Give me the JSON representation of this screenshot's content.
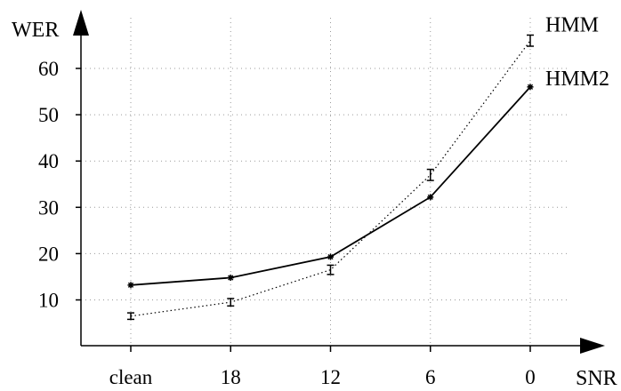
{
  "chart_data": {
    "type": "line",
    "categories": [
      "clean",
      "18",
      "12",
      "6",
      "0"
    ],
    "xlabel": "SNR",
    "ylabel": "WER",
    "yticks": [
      10,
      20,
      30,
      40,
      50,
      60
    ],
    "ylim": [
      0,
      70
    ],
    "grid": true,
    "legend": "labels at line ends (right)",
    "series": [
      {
        "name": "HMM",
        "style": "dotted",
        "marker": "error-bar",
        "color": "#000000",
        "values": [
          6.5,
          9.5,
          16.5,
          37,
          66
        ],
        "error": [
          0.7,
          0.8,
          1.0,
          1.2,
          1.2
        ]
      },
      {
        "name": "HMM2",
        "style": "solid",
        "marker": "star",
        "color": "#000000",
        "values": [
          13.2,
          14.8,
          19.3,
          32.2,
          56
        ]
      }
    ]
  }
}
